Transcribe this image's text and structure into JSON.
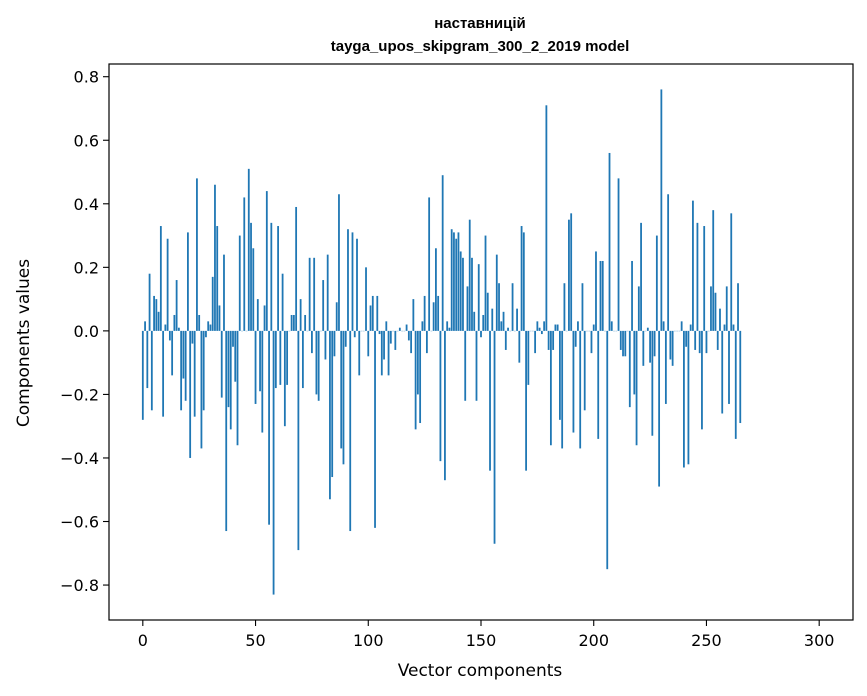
{
  "chart_data": {
    "type": "bar",
    "title": "наставницій",
    "subtitle": "tayga_upos_skipgram_300_2_2019 model",
    "xlabel": "Vector components",
    "ylabel": "Components values",
    "xlim": [
      -15,
      315
    ],
    "ylim": [
      -0.91,
      0.84
    ],
    "xticks": [
      0,
      50,
      100,
      150,
      200,
      250,
      300
    ],
    "xtick_labels": [
      "0",
      "50",
      "100",
      "150",
      "200",
      "250",
      "300"
    ],
    "yticks": [
      -0.8,
      -0.6,
      -0.4,
      -0.2,
      0.0,
      0.2,
      0.4,
      0.6,
      0.8
    ],
    "ytick_labels": [
      "−0.8",
      "−0.6",
      "−0.4",
      "−0.2",
      "0.0",
      "0.2",
      "0.4",
      "0.6",
      "0.8"
    ],
    "bar_color": "#1f77b4",
    "grid": false,
    "values": [
      -0.28,
      0.03,
      -0.18,
      0.18,
      -0.25,
      0.11,
      0.1,
      0.06,
      0.33,
      -0.27,
      0.02,
      0.29,
      -0.03,
      -0.14,
      0.05,
      0.16,
      0.01,
      -0.25,
      -0.15,
      -0.22,
      0.31,
      -0.4,
      -0.04,
      -0.27,
      0.48,
      0.05,
      -0.37,
      -0.25,
      -0.02,
      0.03,
      0.02,
      0.17,
      0.46,
      0.33,
      0.08,
      -0.21,
      0.24,
      -0.63,
      -0.24,
      -0.31,
      -0.05,
      -0.16,
      -0.36,
      0.3,
      0.0,
      0.42,
      0.0,
      0.51,
      0.34,
      0.26,
      -0.23,
      0.1,
      -0.19,
      -0.32,
      0.08,
      0.44,
      -0.61,
      0.34,
      -0.83,
      -0.18,
      0.33,
      -0.17,
      0.18,
      -0.3,
      -0.17,
      0.0,
      0.05,
      0.05,
      0.39,
      -0.69,
      0.1,
      -0.18,
      0.05,
      0.0,
      0.23,
      -0.07,
      0.23,
      -0.2,
      -0.22,
      0.0,
      0.16,
      -0.09,
      0.24,
      -0.53,
      -0.46,
      -0.08,
      0.09,
      0.43,
      -0.37,
      -0.42,
      -0.05,
      0.32,
      -0.63,
      0.31,
      -0.02,
      0.29,
      -0.14,
      0.0,
      0.0,
      0.2,
      -0.08,
      0.08,
      0.11,
      -0.62,
      0.11,
      -0.01,
      -0.14,
      -0.09,
      0.03,
      -0.14,
      -0.04,
      0.0,
      -0.06,
      0.0,
      0.01,
      0.0,
      0.0,
      0.02,
      -0.03,
      -0.07,
      0.1,
      -0.31,
      -0.2,
      -0.29,
      0.03,
      0.11,
      -0.07,
      0.42,
      0.0,
      0.09,
      0.26,
      0.11,
      -0.41,
      0.49,
      -0.47,
      0.03,
      0.01,
      0.32,
      0.31,
      0.29,
      0.31,
      0.25,
      0.23,
      -0.22,
      0.14,
      0.35,
      0.23,
      0.06,
      -0.22,
      0.21,
      -0.02,
      0.05,
      0.3,
      0.12,
      -0.44,
      0.07,
      -0.67,
      0.24,
      0.15,
      0.03,
      0.06,
      -0.06,
      0.01,
      0.0,
      0.15,
      0.0,
      0.07,
      -0.1,
      0.33,
      0.31,
      -0.44,
      -0.17,
      0.0,
      0.0,
      -0.07,
      0.03,
      0.01,
      -0.01,
      0.03,
      0.71,
      -0.06,
      -0.36,
      -0.06,
      0.02,
      0.02,
      -0.28,
      -0.37,
      0.15,
      0.0,
      0.35,
      0.37,
      -0.32,
      -0.05,
      0.03,
      -0.37,
      0.15,
      -0.25,
      0.0,
      0.0,
      -0.07,
      0.02,
      0.25,
      -0.34,
      0.22,
      0.22,
      0.0,
      -0.75,
      0.56,
      0.03,
      0.0,
      0.0,
      0.48,
      -0.06,
      -0.08,
      -0.08,
      0.0,
      -0.24,
      0.22,
      -0.2,
      -0.36,
      0.14,
      0.34,
      -0.11,
      0.0,
      0.01,
      -0.1,
      -0.33,
      -0.08,
      0.3,
      -0.49,
      0.76,
      0.03,
      -0.23,
      0.43,
      -0.09,
      -0.11,
      0.0,
      0.0,
      0.0,
      0.03,
      -0.43,
      -0.05,
      -0.42,
      0.02,
      0.41,
      -0.06,
      0.34,
      -0.07,
      -0.31,
      0.33,
      -0.07,
      0.0,
      0.14,
      0.38,
      0.12,
      -0.06,
      0.07,
      -0.26,
      0.02,
      0.14,
      -0.23,
      0.37,
      0.02,
      -0.34,
      0.15,
      -0.29
    ]
  }
}
